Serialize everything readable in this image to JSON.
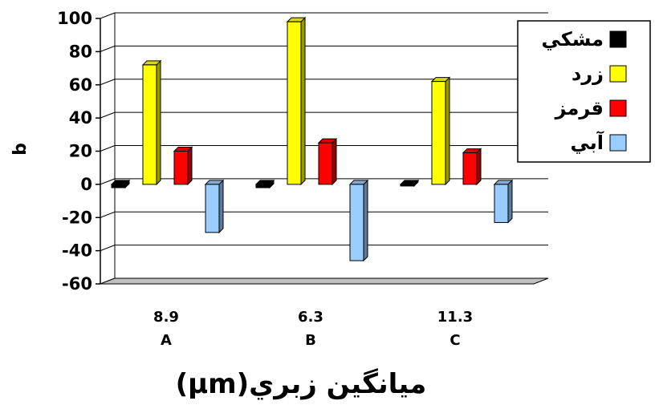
{
  "chart_data": {
    "type": "bar",
    "categories": [
      {
        "value": "8.9",
        "label": "A"
      },
      {
        "value": "6.3",
        "label": "B"
      },
      {
        "value": "11.3",
        "label": "C"
      }
    ],
    "series": [
      {
        "name": "مشكي",
        "color": "#000000",
        "values": [
          -2,
          -2,
          -1
        ]
      },
      {
        "name": "زرد",
        "color": "#ffff00",
        "values": [
          72,
          98,
          62
        ]
      },
      {
        "name": "قرمز",
        "color": "#ff0000",
        "values": [
          20,
          25,
          19
        ]
      },
      {
        "name": "آبي",
        "color": "#99ccff",
        "values": [
          -29,
          -46,
          -23
        ]
      }
    ],
    "ylabel": "b",
    "xlabel": "(µm)ميانگين زبري",
    "ylim": [
      -60,
      100
    ],
    "yticks": [
      "100",
      "80",
      "60",
      "40",
      "20",
      "0",
      "-20",
      "-40",
      "-60"
    ],
    "grid": true,
    "legend_position": "top-right",
    "style": "3d-bar"
  }
}
